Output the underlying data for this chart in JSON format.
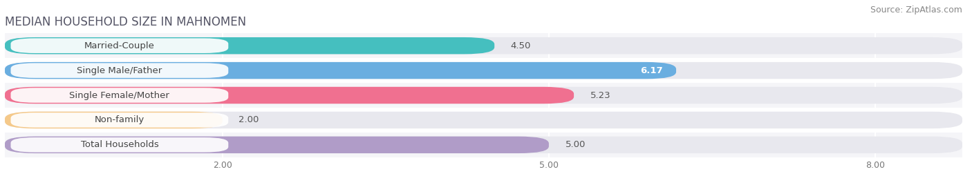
{
  "title": "MEDIAN HOUSEHOLD SIZE IN MAHNOMEN",
  "source": "Source: ZipAtlas.com",
  "categories": [
    "Married-Couple",
    "Single Male/Father",
    "Single Female/Mother",
    "Non-family",
    "Total Households"
  ],
  "values": [
    4.5,
    6.17,
    5.23,
    2.0,
    5.0
  ],
  "bar_colors": [
    "#45bfbf",
    "#6aaee0",
    "#f07090",
    "#f5c98a",
    "#b09cc8"
  ],
  "value_white": [
    false,
    true,
    false,
    false,
    false
  ],
  "xlim_max": 8.8,
  "xticks": [
    2.0,
    5.0,
    8.0
  ],
  "background_color": "#ffffff",
  "bar_bg_color": "#e8e8ee",
  "row_bg_colors": [
    "#f5f5f8",
    "#ffffff"
  ],
  "title_fontsize": 12,
  "source_fontsize": 9,
  "label_fontsize": 9.5,
  "value_fontsize": 9.5
}
